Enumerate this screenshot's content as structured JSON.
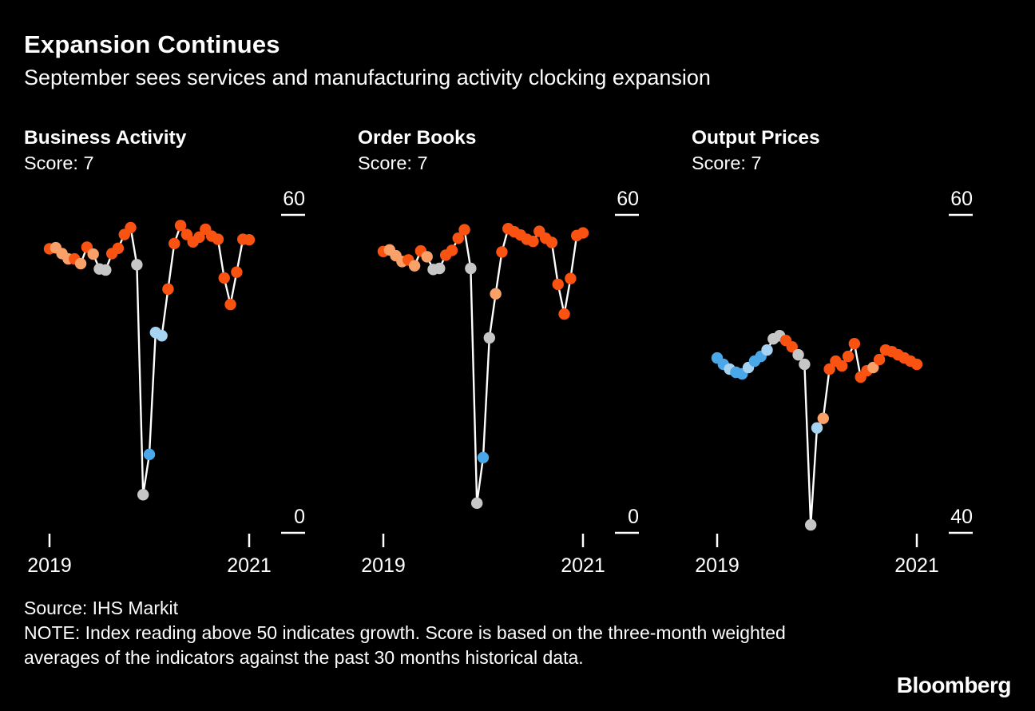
{
  "header": {
    "title": "Expansion Continues",
    "subtitle": "September sees services and manufacturing activity clocking expansion"
  },
  "footer": {
    "source": "Source: IHS Markit",
    "note": "NOTE: Index reading above 50 indicates growth. Score is based on the three-month weighted averages of the indicators against the past 30 months historical data."
  },
  "branding": {
    "logo": "Bloomberg"
  },
  "colors": {
    "background": "#000000",
    "text": "#ffffff",
    "line": "#ffffff",
    "orange": "#fa5211",
    "light_orange": "#f9a168",
    "gray": "#c6c6c6",
    "blue": "#4aa8e8",
    "light_blue": "#a6d3f2"
  },
  "chart_data": [
    {
      "type": "scatter",
      "title": "Business Activity",
      "score_label": "Score: 7",
      "x_tick_labels": [
        "2019",
        "2021"
      ],
      "x_tick_indices": [
        0,
        32
      ],
      "y_ticks": [
        60,
        0
      ],
      "ylim": [
        0,
        60
      ],
      "period": "monthly",
      "values": [
        53.6,
        53.8,
        52.7,
        51.7,
        51.7,
        50.8,
        53.9,
        52.6,
        49.8,
        49.6,
        52.7,
        53.7,
        56.3,
        57.6,
        50.6,
        7.2,
        14.8,
        37.8,
        37.2,
        46.0,
        54.6,
        58.0,
        56.3,
        54.9,
        55.8,
        57.3,
        56.0,
        55.4,
        48.1,
        43.1,
        49.2,
        55.4,
        55.3
      ],
      "point_colors": [
        "orange",
        "light_orange",
        "light_orange",
        "light_orange",
        "orange",
        "light_orange",
        "orange",
        "light_orange",
        "gray",
        "gray",
        "orange",
        "orange",
        "orange",
        "orange",
        "gray",
        "gray",
        "blue",
        "light_blue",
        "light_blue",
        "orange",
        "orange",
        "orange",
        "orange",
        "orange",
        "orange",
        "orange",
        "orange",
        "orange",
        "orange",
        "orange",
        "orange",
        "orange",
        "orange"
      ]
    },
    {
      "type": "scatter",
      "title": "Order Books",
      "score_label": "Score: 7",
      "x_tick_labels": [
        "2019",
        "2021"
      ],
      "x_tick_indices": [
        0,
        32
      ],
      "y_ticks": [
        60,
        0
      ],
      "ylim": [
        0,
        60
      ],
      "period": "monthly",
      "values": [
        53.1,
        53.4,
        52.3,
        51.2,
        51.5,
        50.4,
        53.2,
        52.1,
        49.7,
        49.9,
        52.4,
        53.3,
        55.6,
        57.2,
        49.9,
        5.6,
        14.2,
        36.8,
        45.1,
        53.0,
        57.4,
        56.8,
        56.2,
        55.4,
        55.0,
        56.9,
        55.6,
        54.8,
        46.9,
        41.3,
        48.0,
        56.1,
        56.6
      ],
      "point_colors": [
        "orange",
        "light_orange",
        "light_orange",
        "light_orange",
        "orange",
        "light_orange",
        "orange",
        "light_orange",
        "gray",
        "gray",
        "orange",
        "orange",
        "orange",
        "orange",
        "gray",
        "gray",
        "blue",
        "gray",
        "light_orange",
        "orange",
        "orange",
        "orange",
        "orange",
        "orange",
        "orange",
        "orange",
        "orange",
        "orange",
        "orange",
        "orange",
        "orange",
        "orange",
        "orange"
      ]
    },
    {
      "type": "scatter",
      "title": "Output Prices",
      "score_label": "Score: 7",
      "x_tick_labels": [
        "2019",
        "2021"
      ],
      "x_tick_indices": [
        0,
        32
      ],
      "y_ticks": [
        60,
        40
      ],
      "ylim": [
        40,
        60
      ],
      "period": "monthly",
      "values": [
        51.0,
        50.6,
        50.3,
        50.1,
        50.0,
        50.4,
        50.8,
        51.1,
        51.5,
        52.2,
        52.4,
        52.1,
        51.7,
        51.2,
        50.6,
        40.5,
        46.6,
        47.2,
        50.3,
        50.8,
        50.5,
        51.1,
        51.9,
        49.8,
        50.2,
        50.4,
        50.9,
        51.5,
        51.4,
        51.2,
        51.0,
        50.8,
        50.6
      ],
      "point_colors": [
        "blue",
        "blue",
        "light_blue",
        "blue",
        "blue",
        "light_blue",
        "blue",
        "blue",
        "light_blue",
        "gray",
        "gray",
        "orange",
        "orange",
        "gray",
        "gray",
        "gray",
        "light_blue",
        "light_orange",
        "orange",
        "orange",
        "orange",
        "orange",
        "orange",
        "orange",
        "orange",
        "light_orange",
        "orange",
        "orange",
        "orange",
        "orange",
        "orange",
        "orange",
        "orange"
      ]
    }
  ]
}
